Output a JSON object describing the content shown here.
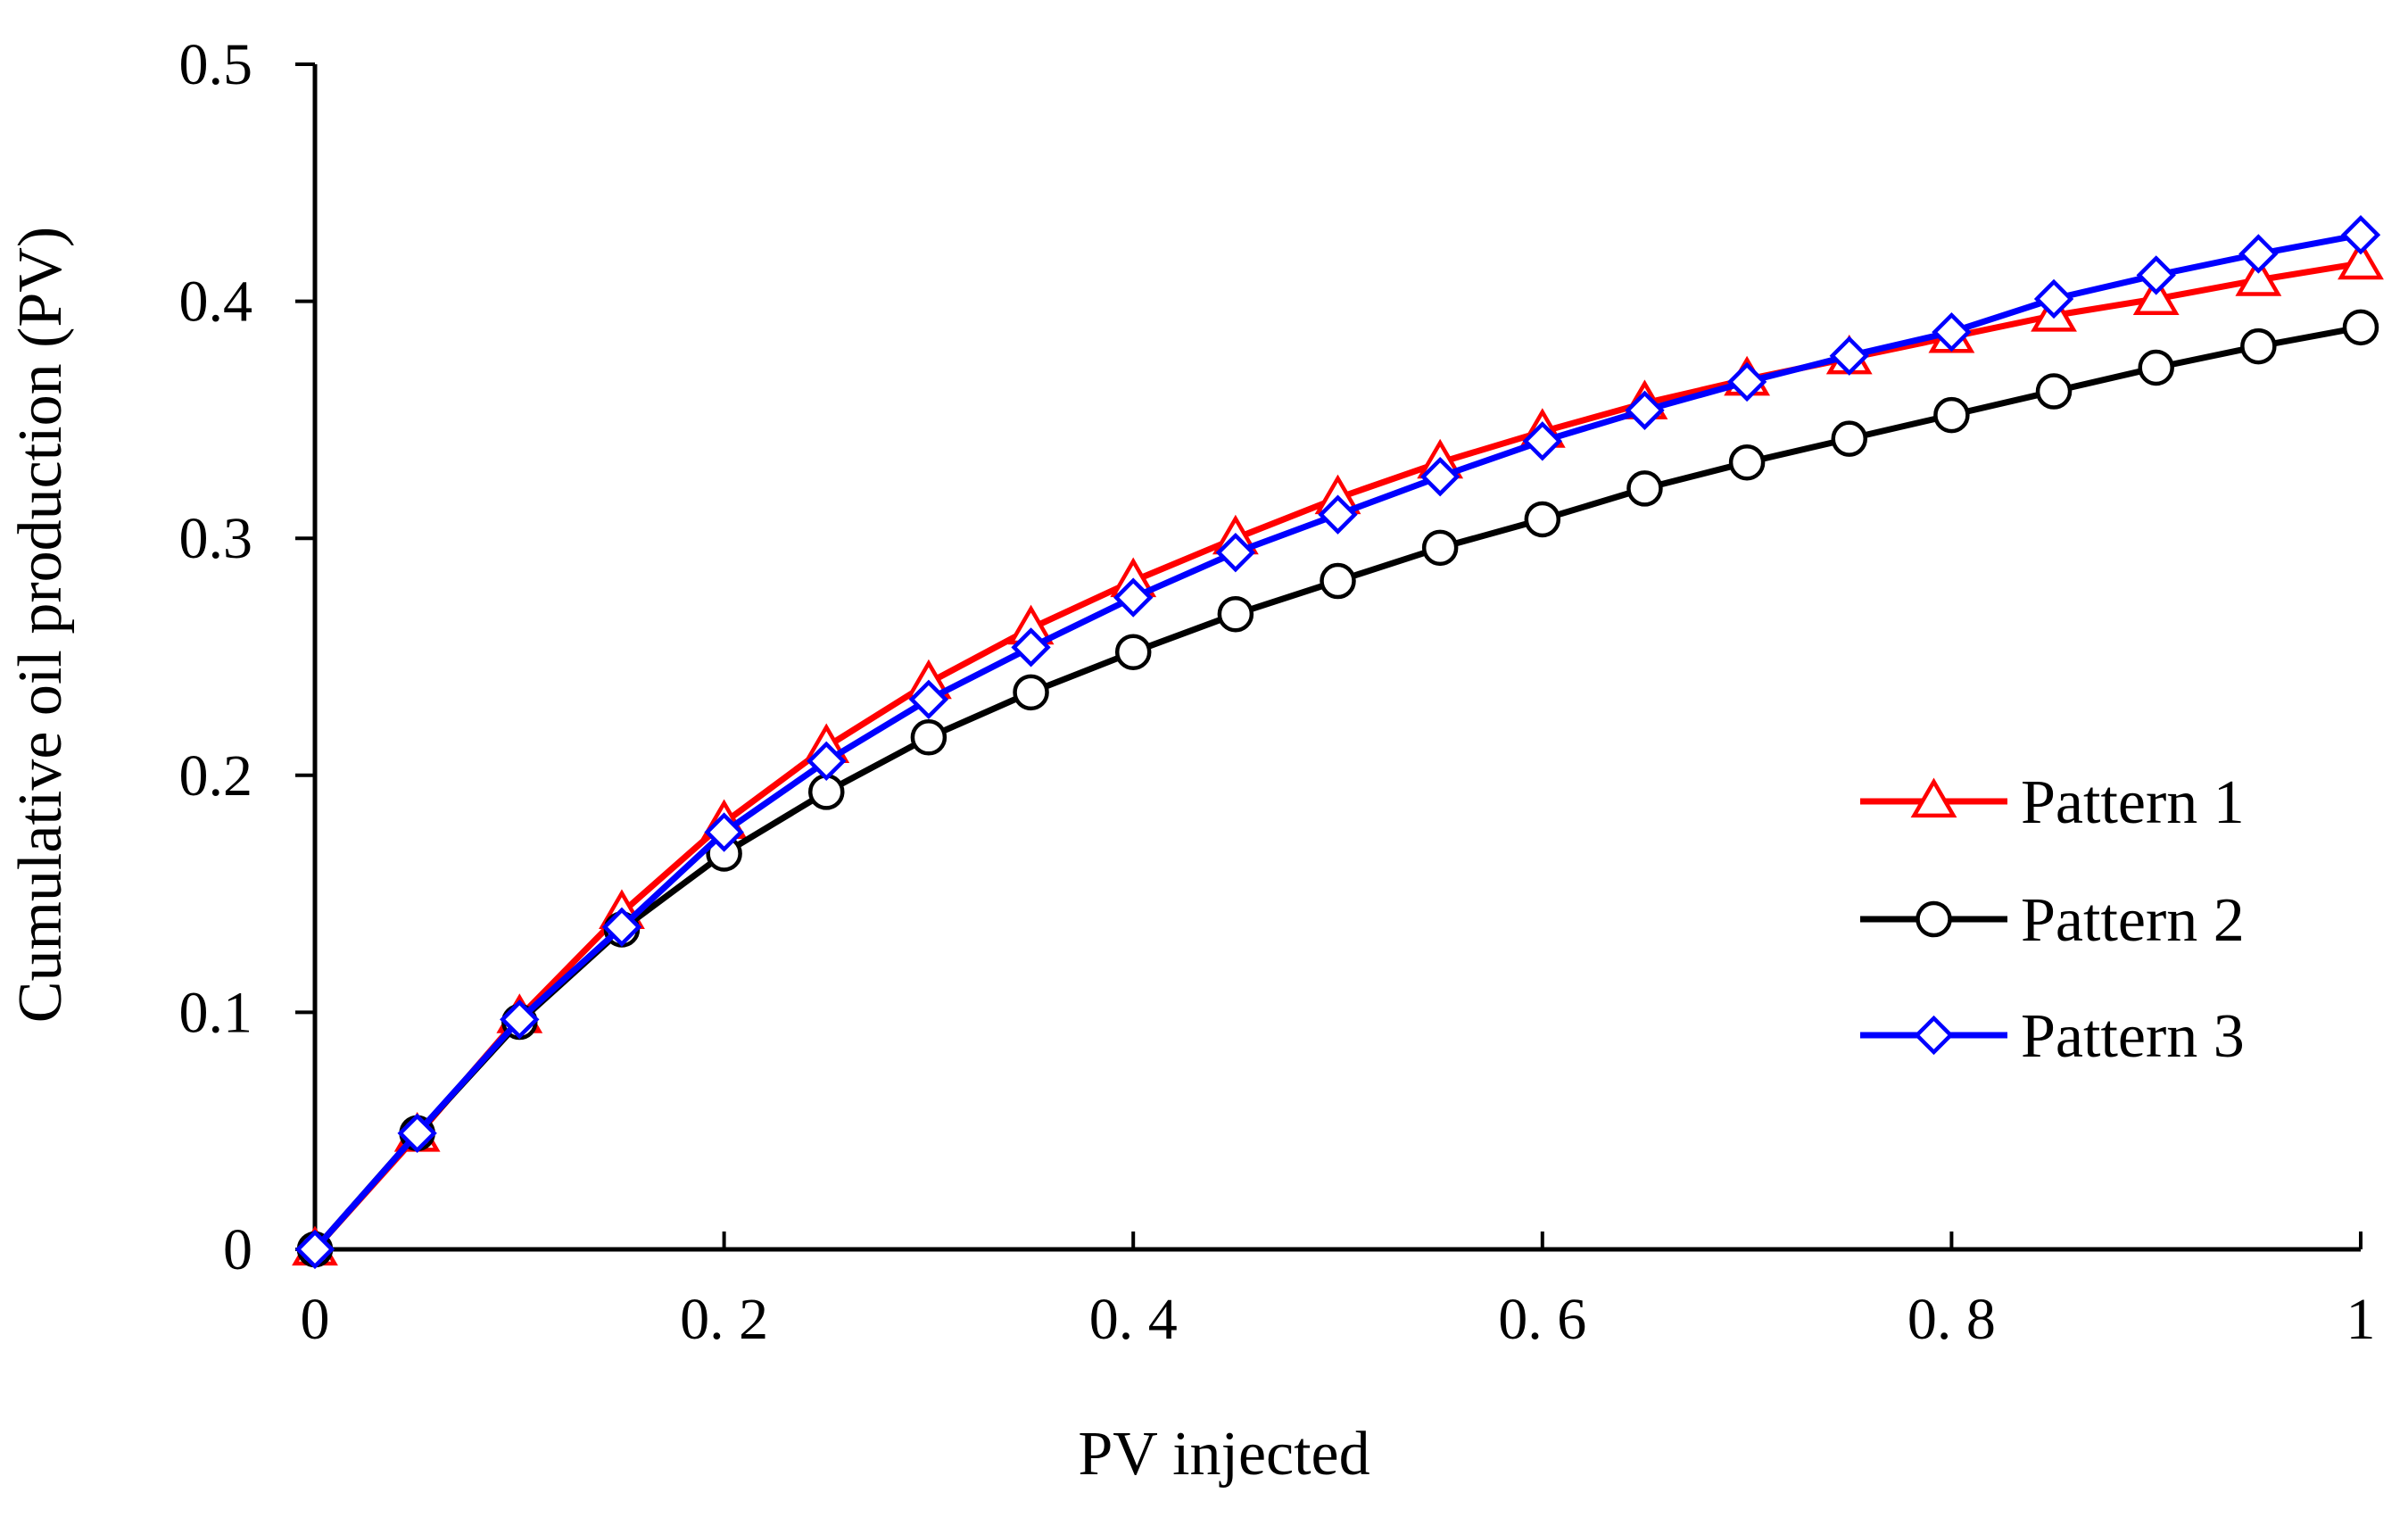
{
  "chart_data": {
    "type": "line",
    "title": "",
    "xlabel": "PV injected",
    "ylabel": "Cumulative oil production (PV)",
    "xlim": [
      0,
      1
    ],
    "ylim": [
      0,
      0.5
    ],
    "x_ticks": [
      0,
      0.2,
      0.4,
      0.6,
      0.8,
      1
    ],
    "x_tick_labels": [
      "0",
      "0. 2",
      "0. 4",
      "0. 6",
      "0. 8",
      "1"
    ],
    "y_ticks": [
      0,
      0.1,
      0.2,
      0.3,
      0.4,
      0.5
    ],
    "y_tick_labels": [
      "0",
      "0.1",
      "0.2",
      "0.3",
      "0.4",
      "0.5"
    ],
    "grid": false,
    "legend_position": "center-right",
    "x": [
      0,
      0.05,
      0.1,
      0.15,
      0.2,
      0.25,
      0.3,
      0.35,
      0.4,
      0.45,
      0.5,
      0.55,
      0.6,
      0.65,
      0.7,
      0.75,
      0.8,
      0.85,
      0.9,
      0.95,
      1.0
    ],
    "series": [
      {
        "name": "Pattern 1",
        "color": "#ff0000",
        "marker": "triangle",
        "values": [
          0,
          0.048,
          0.098,
          0.142,
          0.18,
          0.212,
          0.239,
          0.262,
          0.282,
          0.3,
          0.317,
          0.332,
          0.345,
          0.357,
          0.367,
          0.376,
          0.385,
          0.394,
          0.401,
          0.409,
          0.416
        ]
      },
      {
        "name": "Pattern 2",
        "color": "#000000",
        "marker": "circle",
        "values": [
          0,
          0.049,
          0.096,
          0.135,
          0.167,
          0.193,
          0.216,
          0.235,
          0.252,
          0.268,
          0.282,
          0.296,
          0.308,
          0.321,
          0.332,
          0.342,
          0.352,
          0.362,
          0.372,
          0.381,
          0.389
        ]
      },
      {
        "name": "Pattern 3",
        "color": "#0000ff",
        "marker": "diamond",
        "values": [
          0,
          0.049,
          0.097,
          0.136,
          0.176,
          0.206,
          0.232,
          0.254,
          0.275,
          0.294,
          0.31,
          0.326,
          0.341,
          0.354,
          0.366,
          0.377,
          0.387,
          0.401,
          0.411,
          0.42,
          0.428
        ]
      }
    ]
  }
}
